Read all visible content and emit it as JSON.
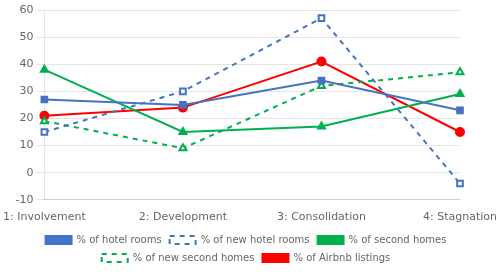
{
  "chart_data": {
    "type": "line",
    "categories": [
      "1: Involvement",
      "2: Development",
      "3: Consolidation",
      "4: Stagnation"
    ],
    "series": [
      {
        "name": "% of hotel rooms",
        "color": "#4472C4",
        "values": [
          27,
          25,
          34,
          23
        ],
        "marker": "square",
        "line_style": "solid"
      },
      {
        "name": "% of new hotel rooms",
        "color": "#4472C4",
        "values": [
          15,
          30,
          57,
          -4
        ],
        "marker": "square",
        "line_style": "dashed"
      },
      {
        "name": "% of second homes",
        "color": "#00B050",
        "values": [
          38,
          15,
          17,
          29
        ],
        "marker": "triangle",
        "line_style": "solid"
      },
      {
        "name": "% of new second homes",
        "color": "#00B050",
        "values": [
          19,
          9,
          32,
          37
        ],
        "marker": "triangle",
        "line_style": "dashed"
      },
      {
        "name": "% of Airbnb listings",
        "color": "#FF0000",
        "values": [
          21,
          24,
          41,
          15
        ],
        "marker": "circle",
        "line_style": "solid"
      }
    ],
    "ylim": [
      -10,
      60
    ],
    "yticks": [
      -10,
      0,
      10,
      20,
      30,
      40,
      50,
      60
    ],
    "grid": true,
    "legend": "bottom"
  }
}
